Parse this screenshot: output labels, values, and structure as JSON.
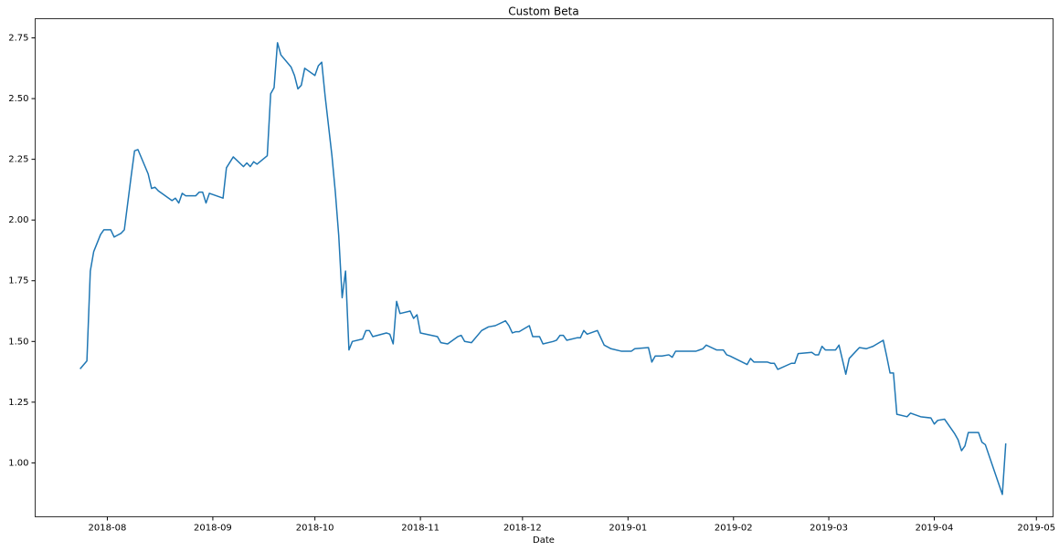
{
  "chart_data": {
    "type": "line",
    "title": "Custom Beta",
    "x_label": "Date",
    "x": [
      17736,
      17738,
      17739,
      17740,
      17742,
      17743,
      17744,
      17745,
      17746,
      17748,
      17749,
      17751,
      17752,
      17753,
      17756,
      17757,
      17758,
      17759,
      17760,
      17763,
      17764,
      17765,
      17766,
      17767,
      17770,
      17771,
      17772,
      17773,
      17774,
      17778,
      17779,
      17781,
      17784,
      17785,
      17786,
      17787,
      17788,
      17791,
      17792,
      17793,
      17794,
      17795,
      17798,
      17799,
      17800,
      17801,
      17802,
      17805,
      17806,
      17807,
      17808,
      17810,
      17811,
      17812,
      17813,
      17814,
      17815,
      17816,
      17819,
      17820,
      17821,
      17822,
      17826,
      17827,
      17828,
      17829,
      17830,
      17833,
      17834,
      17835,
      17836,
      17841,
      17842,
      17844,
      17847,
      17848,
      17849,
      17851,
      17854,
      17856,
      17858,
      17861,
      17862,
      17863,
      17864,
      17865,
      17868,
      17869,
      17871,
      17872,
      17875,
      17876,
      17877,
      17878,
      17879,
      17882,
      17883,
      17884,
      17885,
      17888,
      17890,
      17892,
      17895,
      17897,
      17898,
      17899,
      17903,
      17904,
      17905,
      17907,
      17909,
      17910,
      17911,
      17913,
      17917,
      17918,
      17919,
      17920,
      17923,
      17925,
      17926,
      17927,
      17932,
      17933,
      17934,
      17938,
      17939,
      17940,
      17941,
      17945,
      17946,
      17947,
      17951,
      17952,
      17953,
      17954,
      17955,
      17958,
      17959,
      17961,
      17962,
      17965,
      17967,
      17968,
      17969,
      17972,
      17973,
      17974,
      17975,
      17976,
      17979,
      17980,
      17981,
      17983,
      17986,
      17987,
      17988,
      17990,
      17993,
      17994,
      17995,
      17996,
      17997,
      18000,
      18001,
      18002,
      18007,
      18008
    ],
    "series": [
      {
        "color": "#1f77b4",
        "values": [
          1.387,
          1.42,
          1.79,
          1.87,
          1.94,
          1.96,
          1.96,
          1.96,
          1.93,
          1.945,
          1.96,
          2.18,
          2.285,
          2.29,
          2.19,
          2.13,
          2.135,
          2.12,
          2.11,
          2.08,
          2.09,
          2.07,
          2.11,
          2.1,
          2.1,
          2.115,
          2.115,
          2.07,
          2.11,
          2.09,
          2.215,
          2.26,
          2.22,
          2.235,
          2.22,
          2.24,
          2.23,
          2.265,
          2.52,
          2.545,
          2.73,
          2.68,
          2.63,
          2.595,
          2.54,
          2.555,
          2.625,
          2.595,
          2.635,
          2.65,
          2.51,
          2.265,
          2.115,
          1.935,
          1.68,
          1.79,
          1.465,
          1.5,
          1.51,
          1.545,
          1.545,
          1.52,
          1.535,
          1.53,
          1.49,
          1.665,
          1.615,
          1.625,
          1.595,
          1.61,
          1.535,
          1.52,
          1.495,
          1.49,
          1.52,
          1.525,
          1.5,
          1.495,
          1.545,
          1.56,
          1.565,
          1.585,
          1.565,
          1.535,
          1.54,
          1.54,
          1.565,
          1.52,
          1.52,
          1.49,
          1.5,
          1.505,
          1.525,
          1.525,
          1.505,
          1.515,
          1.515,
          1.545,
          1.53,
          1.545,
          1.485,
          1.47,
          1.46,
          1.46,
          1.46,
          1.47,
          1.475,
          1.415,
          1.44,
          1.44,
          1.445,
          1.435,
          1.46,
          1.46,
          1.46,
          1.465,
          1.47,
          1.485,
          1.465,
          1.465,
          1.445,
          1.44,
          1.405,
          1.43,
          1.415,
          1.415,
          1.41,
          1.41,
          1.385,
          1.41,
          1.41,
          1.45,
          1.455,
          1.445,
          1.445,
          1.48,
          1.465,
          1.465,
          1.485,
          1.365,
          1.43,
          1.475,
          1.47,
          1.475,
          1.48,
          1.505,
          1.44,
          1.37,
          1.37,
          1.2,
          1.19,
          1.205,
          1.2,
          1.19,
          1.185,
          1.16,
          1.175,
          1.18,
          1.12,
          1.095,
          1.05,
          1.07,
          1.125,
          1.125,
          1.085,
          1.075,
          0.87,
          1.08
        ]
      }
    ],
    "xlim": [
      17722.8,
      18021.9
    ],
    "xticks": [
      {
        "value": 17744,
        "label": "2018-08"
      },
      {
        "value": 17775,
        "label": "2018-09"
      },
      {
        "value": 17805,
        "label": "2018-10"
      },
      {
        "value": 17836,
        "label": "2018-11"
      },
      {
        "value": 17866,
        "label": "2018-12"
      },
      {
        "value": 17897,
        "label": "2019-01"
      },
      {
        "value": 17928,
        "label": "2019-02"
      },
      {
        "value": 17956,
        "label": "2019-03"
      },
      {
        "value": 17987,
        "label": "2019-04"
      },
      {
        "value": 18017,
        "label": "2019-05"
      }
    ],
    "ylim": [
      0.778,
      2.829
    ],
    "yticks": [
      {
        "value": 1,
        "label": "1.00"
      },
      {
        "value": 1.25,
        "label": "1.25"
      },
      {
        "value": 1.5,
        "label": "1.50"
      },
      {
        "value": 1.75,
        "label": "1.75"
      },
      {
        "value": 2,
        "label": "2.00"
      },
      {
        "value": 2.25,
        "label": "2.25"
      },
      {
        "value": 2.5,
        "label": "2.50"
      },
      {
        "value": 2.75,
        "label": "2.75"
      }
    ],
    "grid": false
  }
}
